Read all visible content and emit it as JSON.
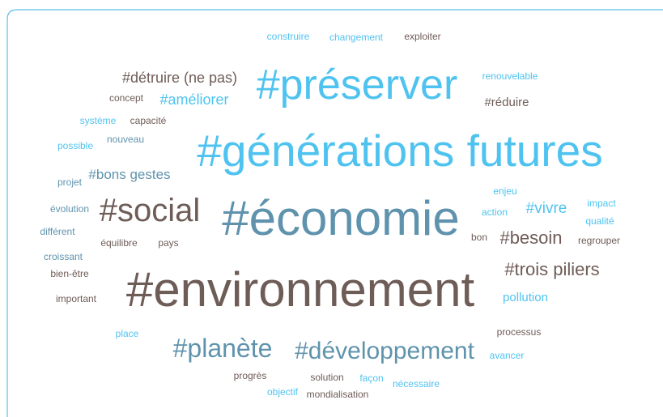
{
  "words": [
    "construire",
    "changement",
    "exploiter",
    "#détruire (ne pas)",
    "#préserver",
    "renouvelable",
    "concept",
    "#améliorer",
    "#réduire",
    "système",
    "capacité",
    "#générations futures",
    "possible",
    "nouveau",
    "projet",
    "#bons gestes",
    "enjeu",
    "#vivre",
    "impact",
    "évolution",
    "#social",
    "#économie",
    "action",
    "qualité",
    "différent",
    "bon",
    "#besoin",
    "regrouper",
    "équilibre",
    "pays",
    "croissant",
    "#trois piliers",
    "bien-être",
    "#environnement",
    "pollution",
    "important",
    "place",
    "processus",
    "#planète",
    "#développement",
    "avancer",
    "progrès",
    "solution",
    "façon",
    "nécessaire",
    "objectif",
    "mondialisation"
  ]
}
